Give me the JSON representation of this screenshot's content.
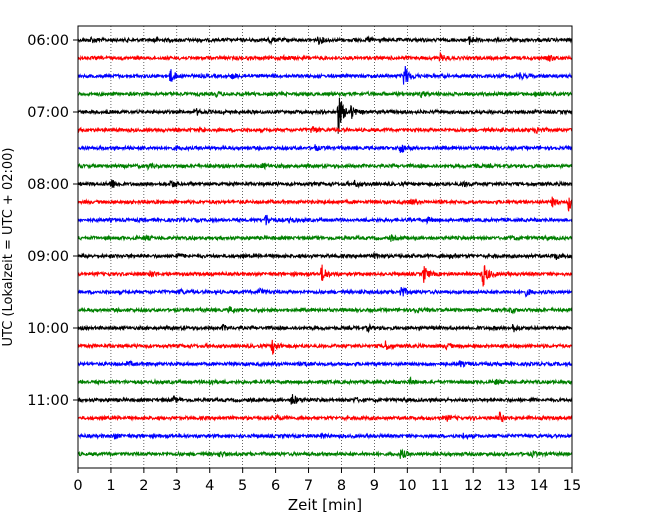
{
  "chart_data": {
    "type": "line",
    "title": "",
    "xlabel": "Zeit  [min]",
    "ylabel": "UTC (Lokalzeit = UTC + 02:00)",
    "xlim": [
      0,
      15
    ],
    "x_ticks": [
      "0",
      "1",
      "2",
      "3",
      "4",
      "5",
      "6",
      "7",
      "8",
      "9",
      "10",
      "11",
      "12",
      "13",
      "14",
      "15"
    ],
    "y_ticks": [
      {
        "row": 0,
        "label": "06:00"
      },
      {
        "row": 4,
        "label": "07:00"
      },
      {
        "row": 8,
        "label": "08:00"
      },
      {
        "row": 12,
        "label": "09:00"
      },
      {
        "row": 16,
        "label": "10:00"
      },
      {
        "row": 20,
        "label": "11:00"
      }
    ],
    "vertical_gridlines": "dotted, each minute",
    "colors": [
      "#000000",
      "#ff0000",
      "#0000ff",
      "#008000"
    ],
    "traces": [
      {
        "start": "06:00",
        "color": "#000000",
        "events": [
          [
            0.4,
            0.35
          ],
          [
            2.3,
            0.3
          ],
          [
            5.8,
            0.45
          ],
          [
            7.3,
            0.5
          ],
          [
            8.8,
            0.3
          ],
          [
            11.9,
            0.55
          ]
        ]
      },
      {
        "start": "06:15",
        "color": "#ff0000",
        "events": [
          [
            6.2,
            0.3
          ],
          [
            11.0,
            0.45
          ],
          [
            14.3,
            0.35
          ]
        ]
      },
      {
        "start": "06:30",
        "color": "#0000ff",
        "events": [
          [
            2.8,
            0.9
          ],
          [
            4.7,
            0.35
          ],
          [
            9.9,
            1.6
          ],
          [
            13.4,
            0.45
          ]
        ]
      },
      {
        "start": "06:45",
        "color": "#008000",
        "events": [
          [
            4.2,
            0.25
          ],
          [
            10.4,
            0.35
          ],
          [
            13.9,
            0.25
          ]
        ]
      },
      {
        "start": "07:00",
        "color": "#000000",
        "events": [
          [
            7.9,
            2.6
          ],
          [
            8.3,
            0.7
          ],
          [
            3.6,
            0.3
          ]
        ]
      },
      {
        "start": "07:15",
        "color": "#ff0000",
        "events": [
          [
            7.1,
            0.55
          ],
          [
            13.9,
            0.4
          ],
          [
            3.7,
            0.3
          ]
        ]
      },
      {
        "start": "07:30",
        "color": "#0000ff",
        "events": [
          [
            9.8,
            0.75
          ],
          [
            7.2,
            0.3
          ],
          [
            3.0,
            0.25
          ]
        ]
      },
      {
        "start": "07:45",
        "color": "#008000",
        "events": [
          [
            2.1,
            0.3
          ],
          [
            5.6,
            0.25
          ],
          [
            12.0,
            0.3
          ]
        ]
      },
      {
        "start": "08:00",
        "color": "#000000",
        "events": [
          [
            1.0,
            0.75
          ],
          [
            2.8,
            0.55
          ],
          [
            8.4,
            0.35
          ],
          [
            11.7,
            0.3
          ]
        ]
      },
      {
        "start": "08:15",
        "color": "#ff0000",
        "events": [
          [
            14.9,
            1.05
          ],
          [
            14.4,
            0.5
          ],
          [
            10.1,
            0.3
          ]
        ]
      },
      {
        "start": "08:30",
        "color": "#0000ff",
        "events": [
          [
            5.7,
            0.7
          ],
          [
            6.4,
            0.3
          ],
          [
            10.6,
            0.3
          ]
        ]
      },
      {
        "start": "08:45",
        "color": "#008000",
        "events": [
          [
            2.0,
            0.25
          ],
          [
            9.5,
            0.3
          ],
          [
            13.1,
            0.25
          ]
        ]
      },
      {
        "start": "09:00",
        "color": "#000000",
        "events": [
          [
            3.0,
            0.35
          ],
          [
            9.0,
            0.3
          ],
          [
            11.3,
            0.3
          ],
          [
            14.5,
            0.35
          ]
        ]
      },
      {
        "start": "09:15",
        "color": "#ff0000",
        "events": [
          [
            2.2,
            0.4
          ],
          [
            7.4,
            1.2
          ],
          [
            10.5,
            1.0
          ],
          [
            12.3,
            1.6
          ]
        ]
      },
      {
        "start": "09:30",
        "color": "#0000ff",
        "events": [
          [
            5.5,
            0.55
          ],
          [
            9.8,
            0.8
          ],
          [
            13.6,
            0.4
          ],
          [
            3.1,
            0.3
          ]
        ]
      },
      {
        "start": "09:45",
        "color": "#008000",
        "events": [
          [
            4.6,
            0.3
          ],
          [
            10.2,
            0.3
          ],
          [
            13.1,
            0.25
          ]
        ]
      },
      {
        "start": "10:00",
        "color": "#000000",
        "events": [
          [
            4.4,
            0.3
          ],
          [
            8.8,
            0.3
          ],
          [
            13.2,
            0.5
          ]
        ]
      },
      {
        "start": "10:15",
        "color": "#ff0000",
        "events": [
          [
            5.9,
            1.0
          ],
          [
            9.3,
            0.75
          ],
          [
            11.2,
            0.3
          ]
        ]
      },
      {
        "start": "10:30",
        "color": "#0000ff",
        "events": [
          [
            1.5,
            0.25
          ],
          [
            6.9,
            0.3
          ],
          [
            11.6,
            0.3
          ]
        ]
      },
      {
        "start": "10:45",
        "color": "#008000",
        "events": [
          [
            4.0,
            0.3
          ],
          [
            10.1,
            0.35
          ],
          [
            12.7,
            0.25
          ]
        ]
      },
      {
        "start": "11:00",
        "color": "#000000",
        "events": [
          [
            6.5,
            0.8
          ],
          [
            2.9,
            0.3
          ],
          [
            8.4,
            0.3
          ]
        ]
      },
      {
        "start": "11:15",
        "color": "#ff0000",
        "events": [
          [
            12.8,
            0.6
          ],
          [
            6.0,
            0.35
          ],
          [
            11.2,
            0.3
          ]
        ]
      },
      {
        "start": "11:30",
        "color": "#0000ff",
        "events": [
          [
            1.1,
            0.3
          ],
          [
            11.7,
            0.3
          ],
          [
            7.4,
            0.25
          ]
        ]
      },
      {
        "start": "11:45",
        "color": "#008000",
        "events": [
          [
            9.8,
            0.6
          ],
          [
            4.3,
            0.25
          ],
          [
            13.8,
            0.25
          ]
        ]
      }
    ]
  }
}
